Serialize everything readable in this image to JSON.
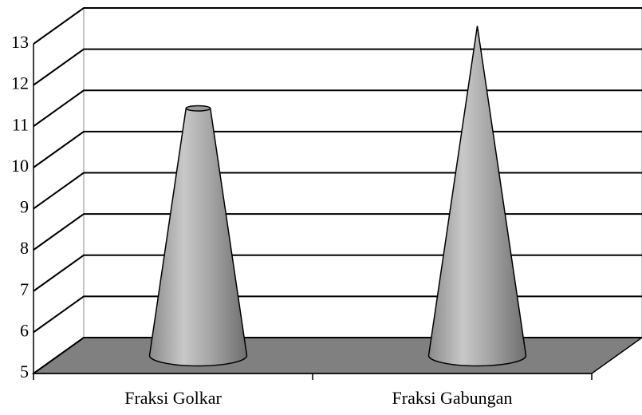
{
  "chart_data": {
    "type": "cone",
    "categories": [
      "Fraksi Golkar",
      "Fraksi Gabungan"
    ],
    "values": [
      11,
      13
    ],
    "ylim": [
      5,
      13
    ],
    "yticks": [
      5,
      6,
      7,
      8,
      9,
      10,
      11,
      12,
      13
    ],
    "grid": true
  }
}
